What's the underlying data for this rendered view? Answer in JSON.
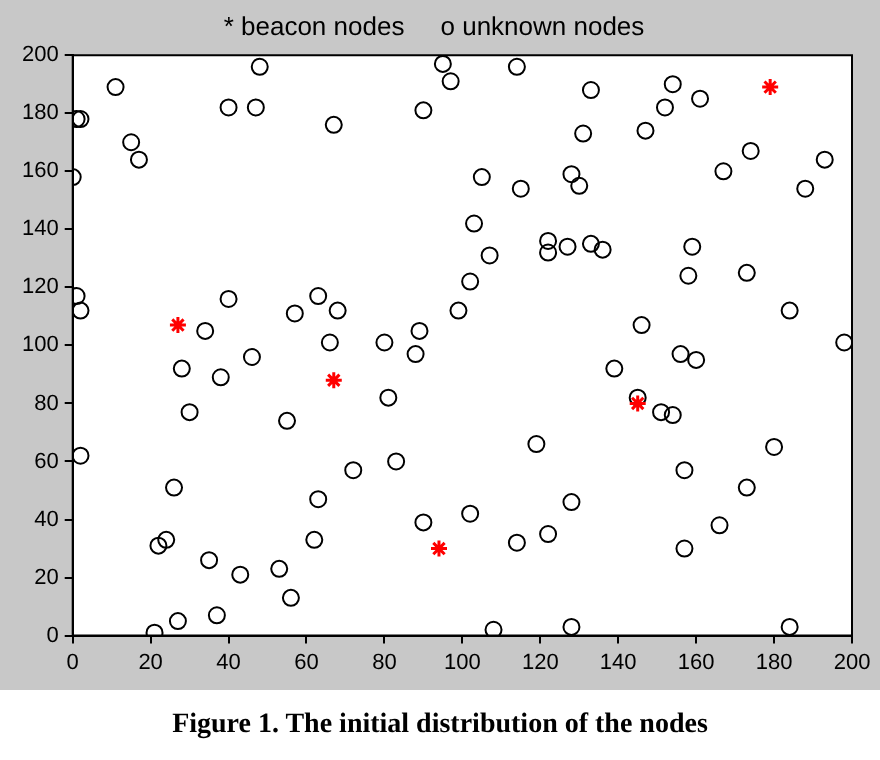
{
  "chart_data": {
    "type": "scatter",
    "title": "* beacon nodes     o unknown nodes",
    "annotations": [
      "Figure 1.   The initial distribution of the nodes"
    ],
    "xlim": [
      0,
      200
    ],
    "ylim": [
      0,
      200
    ],
    "xticks": [
      0,
      20,
      40,
      60,
      80,
      100,
      120,
      140,
      160,
      180,
      200
    ],
    "yticks": [
      0,
      20,
      40,
      60,
      80,
      100,
      120,
      140,
      160,
      180,
      200
    ],
    "grid": false,
    "legend": false,
    "series": [
      {
        "color": "#ff0000",
        "marker": "cross",
        "x": [
          27,
          67,
          94,
          145,
          179
        ],
        "values": [
          107,
          88,
          30,
          80,
          189
        ]
      },
      {
        "color": "#000000",
        "marker": "circle",
        "x": [
          1,
          2,
          0,
          1,
          2,
          2,
          11,
          15,
          17,
          22,
          24,
          21,
          26,
          27,
          28,
          30,
          34,
          35,
          37,
          38,
          40,
          43,
          46,
          47,
          40,
          48,
          53,
          55,
          56,
          57,
          62,
          63,
          63,
          66,
          67,
          68,
          72,
          80,
          81,
          83,
          88,
          90,
          89,
          90,
          95,
          97,
          99,
          102,
          103,
          102,
          105,
          107,
          108,
          114,
          114,
          115,
          119,
          122,
          122,
          122,
          128,
          128,
          127,
          128,
          130,
          131,
          133,
          133,
          136,
          139,
          145,
          146,
          147,
          151,
          152,
          154,
          154,
          156,
          157,
          157,
          158,
          159,
          160,
          161,
          166,
          167,
          173,
          173,
          174,
          180,
          184,
          184,
          188,
          193,
          198
        ],
        "values": [
          178,
          178,
          158,
          117,
          112,
          62,
          189,
          170,
          164,
          31,
          33,
          1,
          51,
          5,
          92,
          77,
          105,
          26,
          7,
          89,
          116,
          21,
          96,
          182,
          182,
          196,
          23,
          74,
          13,
          111,
          33,
          47,
          117,
          101,
          176,
          112,
          57,
          101,
          82,
          60,
          97,
          39,
          105,
          181,
          197,
          191,
          112,
          122,
          142,
          42,
          158,
          131,
          2,
          32,
          196,
          154,
          66,
          35,
          136,
          132,
          46,
          3,
          134,
          159,
          155,
          173,
          188,
          135,
          133,
          92,
          82,
          107,
          174,
          77,
          182,
          190,
          76,
          97,
          57,
          30,
          124,
          134,
          95,
          185,
          38,
          160,
          51,
          125,
          167,
          65,
          112,
          3,
          154,
          164,
          101
        ]
      }
    ]
  }
}
